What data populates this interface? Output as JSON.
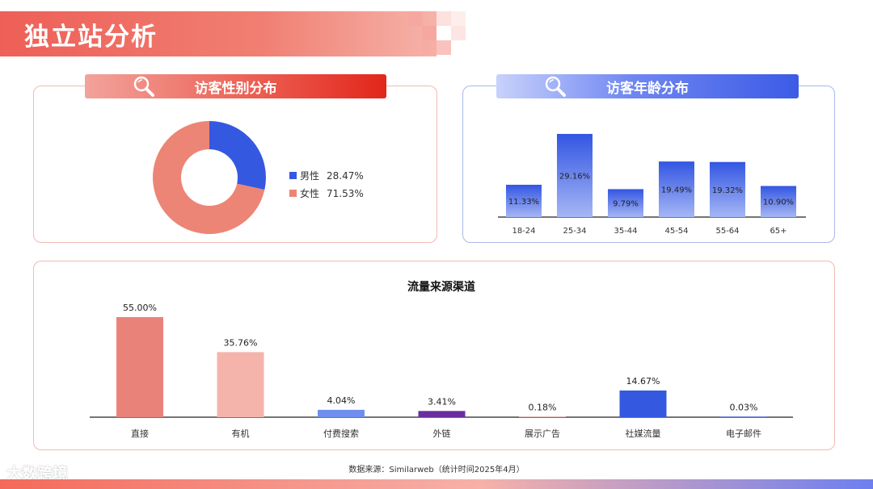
{
  "page": {
    "title": "独立站分析",
    "footer_note": "数据来源：Similarweb（统计时间2025年4月）",
    "brand_logo": "大数跨境"
  },
  "panels": {
    "gender_title": "访客性别分布",
    "age_title": "访客年龄分布"
  },
  "chart_data": [
    {
      "type": "pie",
      "donut": true,
      "title": "",
      "labels": [
        "男性",
        "女性"
      ],
      "values": [
        28.47,
        71.53
      ],
      "value_labels": [
        "28.47%",
        "71.53%"
      ],
      "colors": [
        "#3558e0",
        "#ec8576"
      ],
      "legend": "right"
    },
    {
      "type": "bar",
      "title": "",
      "categories": [
        "18-24",
        "25-34",
        "35-44",
        "45-54",
        "55-64",
        "65+"
      ],
      "values": [
        11.33,
        29.16,
        9.79,
        19.49,
        19.32,
        10.9
      ],
      "value_labels": [
        "11.33%",
        "29.16%",
        "9.79%",
        "19.49%",
        "19.32%",
        "10.90%"
      ],
      "color": "#3b5ce4",
      "ylim": [
        0,
        30
      ],
      "grid": false
    },
    {
      "type": "bar",
      "title": "流量来源渠道",
      "categories": [
        "直接",
        "有机",
        "付费搜索",
        "外链",
        "展示广告",
        "社媒流量",
        "电子邮件"
      ],
      "values": [
        55.0,
        35.76,
        4.04,
        3.41,
        0.18,
        14.67,
        0.03
      ],
      "value_labels": [
        "55.00%",
        "35.76%",
        "4.04%",
        "3.41%",
        "0.18%",
        "14.67%",
        "0.03%"
      ],
      "colors": [
        "#e9837a",
        "#f4b4ac",
        "#6e8ff0",
        "#6a2da0",
        "#f4b4ac",
        "#3558e0",
        "#3558e0"
      ],
      "ylim": [
        0,
        55
      ],
      "grid": false
    }
  ]
}
